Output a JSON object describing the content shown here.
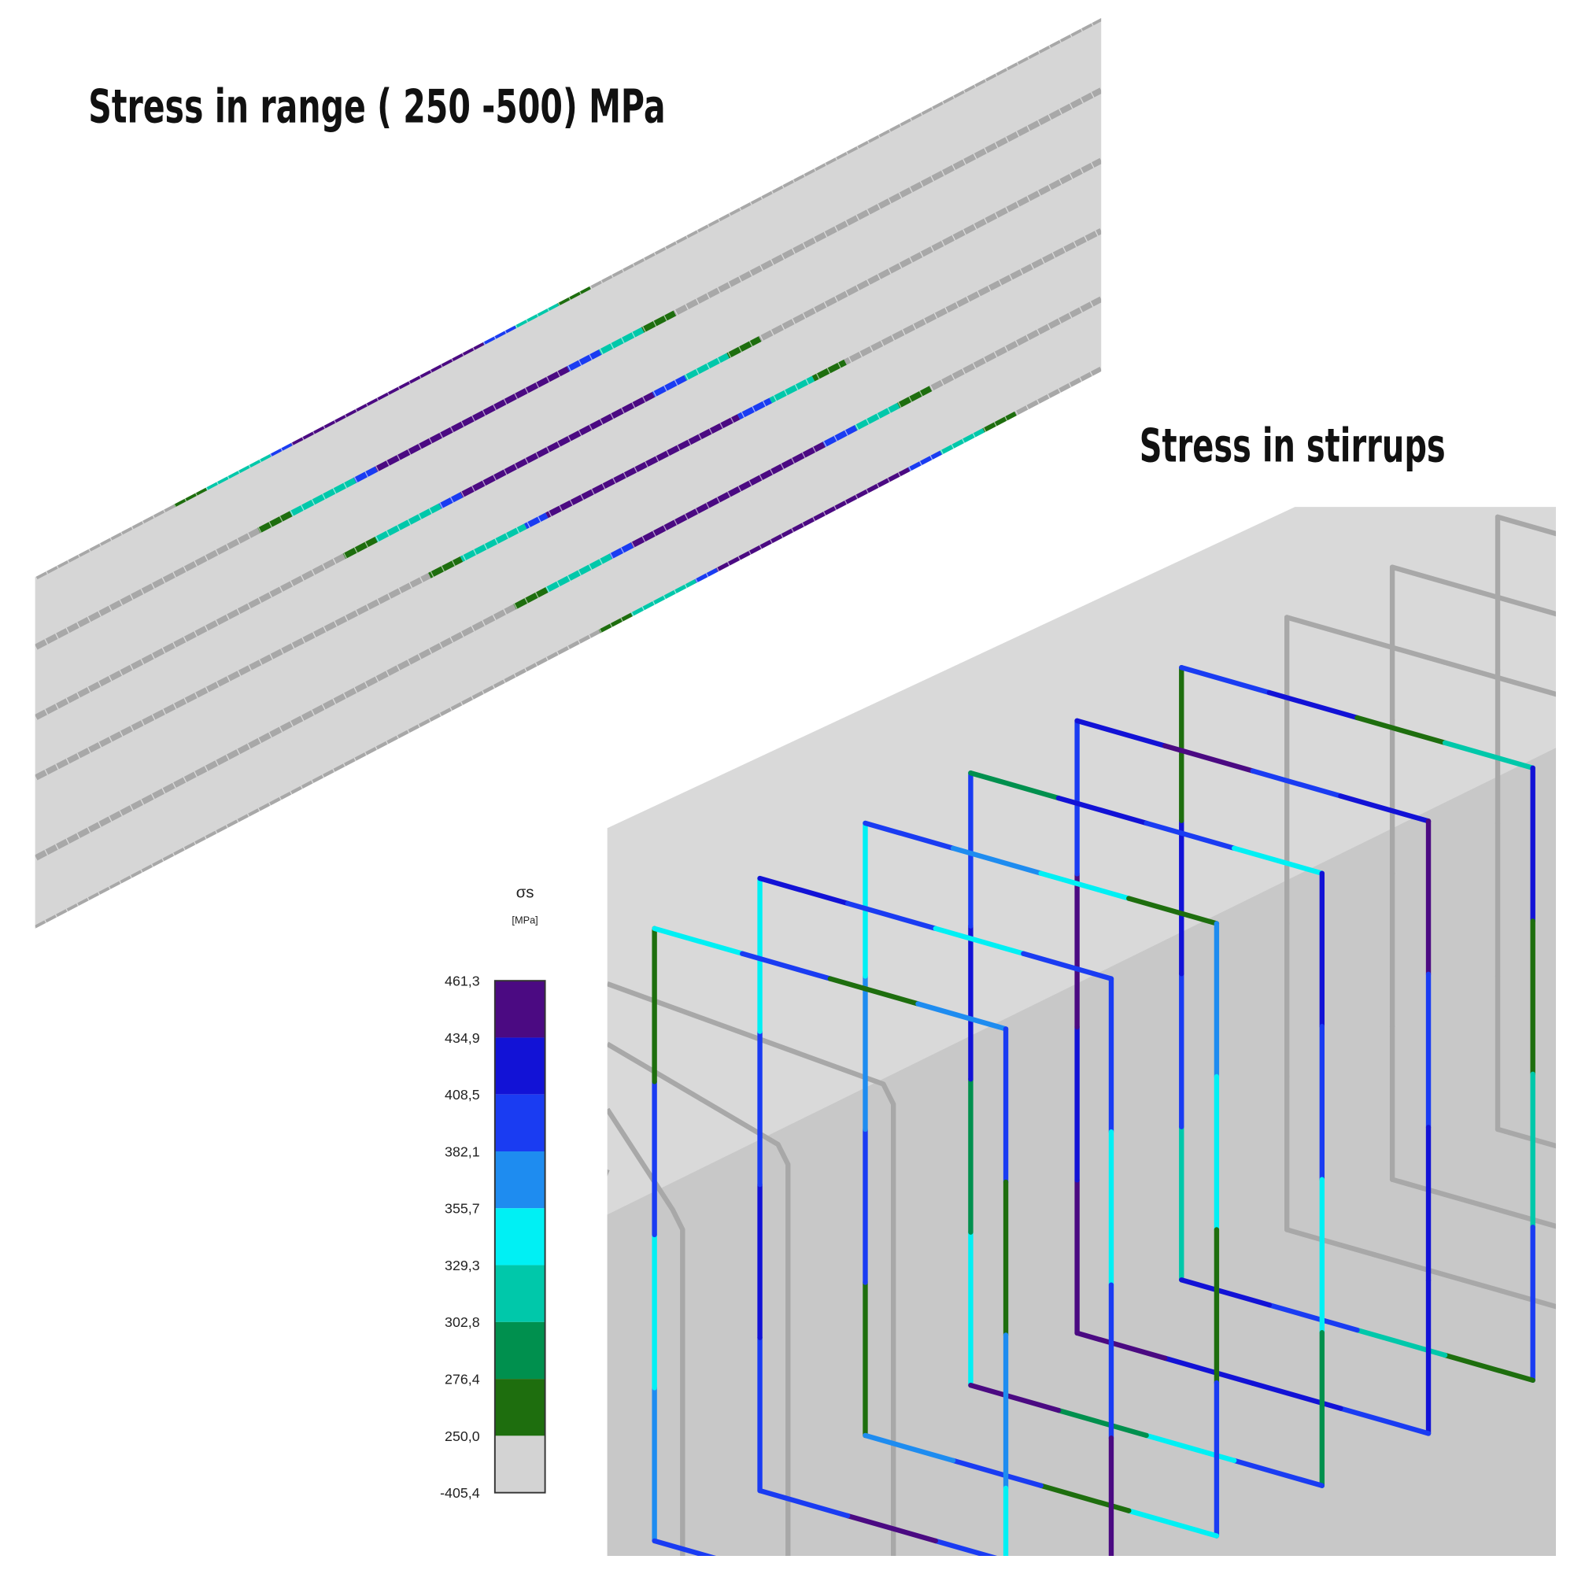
{
  "titles": [
    "Stress in range ( 250 -500) MPa",
    "Stress in stirrups"
  ],
  "legend": {
    "symbol": "σs",
    "unit": "[MPa]",
    "labels": [
      "461,3",
      "434,9",
      "408,5",
      "382,1",
      "355,7",
      "329,3",
      "302,8",
      "276,4",
      "250,0",
      "-405,4"
    ],
    "colors": [
      "#4b0a82",
      "#1212d6",
      "#1a3cf2",
      "#1e8cf0",
      "#00f0f4",
      "#00c8aa",
      "#00904e",
      "#1e6e0e",
      "#d3d3d3"
    ]
  }
}
